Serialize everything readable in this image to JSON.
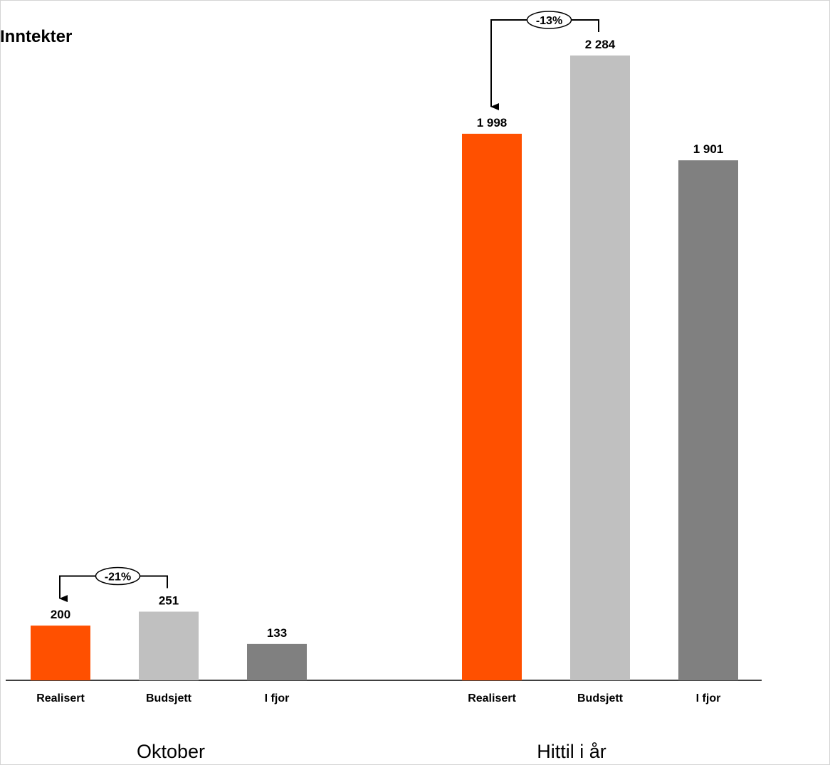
{
  "chart_data": {
    "type": "bar",
    "title": "Inntekter",
    "groups": [
      {
        "name": "Oktober",
        "bars": [
          {
            "label": "Realisert",
            "value": 200,
            "display": "200"
          },
          {
            "label": "Budsjett",
            "value": 251,
            "display": "251"
          },
          {
            "label": "I fjor",
            "value": 133,
            "display": "133"
          }
        ],
        "variance_annotation": {
          "text": "-21%",
          "from": "Budsjett",
          "to": "Realisert"
        }
      },
      {
        "name": "Hittil i år",
        "bars": [
          {
            "label": "Realisert",
            "value": 1998,
            "display": "1 998"
          },
          {
            "label": "Budsjett",
            "value": 2284,
            "display": "2 284"
          },
          {
            "label": "I fjor",
            "value": 1901,
            "display": "1 901"
          }
        ],
        "variance_annotation": {
          "text": "-13%",
          "from": "Budsjett",
          "to": "Realisert"
        }
      }
    ],
    "series_colors": {
      "Realisert": "#FF5000",
      "Budsjett": "#C0C0C0",
      "I fjor": "#808080"
    },
    "ylim": [
      0,
      2300
    ],
    "grid": false,
    "legend": "none"
  }
}
